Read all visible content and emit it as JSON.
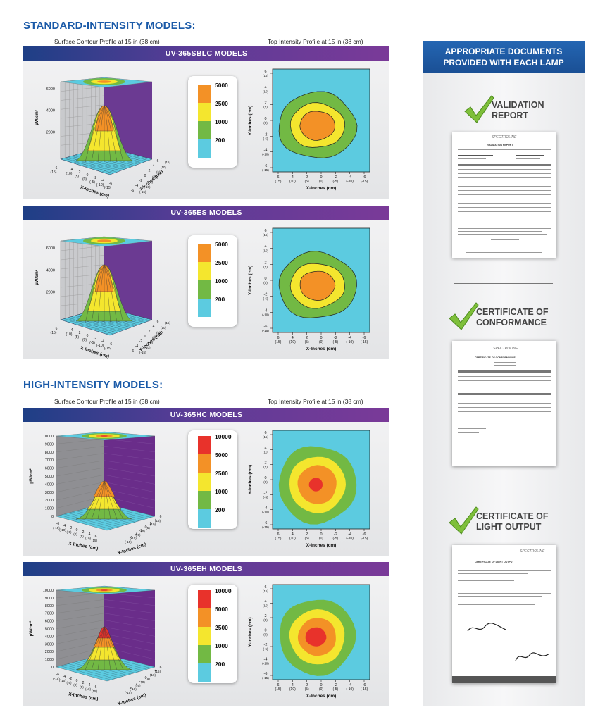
{
  "standard": {
    "title": "STANDARD-INTENSITY MODELS:",
    "surface_label": "Surface Contour Profile at 15 in (38 cm)",
    "top_label": "Top Intensity Profile at 15 in (38 cm)"
  },
  "high": {
    "title": "HIGH-INTENSITY MODELS:",
    "surface_label": "Surface Contour Profile at 15 in (38 cm)",
    "top_label": "Top Intensity Profile at 15 in (38 cm)"
  },
  "panels": [
    {
      "name": "UV-365SBLC MODELS",
      "legend": [
        "5000",
        "2500",
        "1000",
        "200"
      ],
      "z_ticks": [
        "6000",
        "4000",
        "2000"
      ]
    },
    {
      "name": "UV-365ES MODELS",
      "legend": [
        "5000",
        "2500",
        "1000",
        "200"
      ],
      "z_ticks": [
        "6000",
        "4000",
        "2000"
      ]
    },
    {
      "name": "UV-365HC MODELS",
      "legend": [
        "10000",
        "5000",
        "2500",
        "1000",
        "200"
      ],
      "z_ticks": [
        "10000",
        "9000",
        "8000",
        "7000",
        "6000",
        "5000",
        "4000",
        "3000",
        "2000",
        "1000",
        "0"
      ]
    },
    {
      "name": "UV-365EH MODELS",
      "legend": [
        "10000",
        "5000",
        "2500",
        "1000",
        "200"
      ],
      "z_ticks": [
        "10000",
        "9000",
        "8000",
        "7000",
        "6000",
        "5000",
        "4000",
        "3000",
        "2000",
        "1000",
        "0"
      ]
    }
  ],
  "axes": {
    "z_unit": "µW/cm²",
    "x_label": "X-Inches (cm)",
    "y_label": "Y-Inches (cm)",
    "top_x_ticks": [
      "6",
      "4",
      "2",
      "0",
      "-2",
      "-4",
      "-6"
    ],
    "top_x_ticks_cm": [
      "(15)",
      "(10)",
      "(5)",
      "(0)",
      "(-5)",
      "(-10)",
      "(-15)"
    ],
    "top_y_ticks": [
      "6",
      "4",
      "2",
      "0",
      "-2",
      "-4",
      "-6"
    ],
    "top_y_ticks_cm": [
      "(15)",
      "(10)",
      "(5)",
      "(0)",
      "(-5)",
      "(-10)",
      "(-15)"
    ]
  },
  "colors": {
    "red": "#e8322b",
    "orange": "#f39126",
    "yellow": "#f4e62e",
    "green": "#72b944",
    "cyan": "#5ccbe0",
    "purple": "#6b3a92",
    "blue_title": "#1a5aa8"
  },
  "right_column": {
    "header": "APPROPRIATE DOCUMENTS PROVIDED WITH EACH LAMP",
    "header_line1": "APPROPRIATE DOCUMENTS",
    "header_line2": "PROVIDED WITH EACH LAMP",
    "docs": [
      {
        "title_line1": "VALIDATION",
        "title_line2": "REPORT",
        "icon": "check-icon"
      },
      {
        "title_line1": "CERTIFICATE OF",
        "title_line2": "CONFORMANCE",
        "icon": "check-icon"
      },
      {
        "title_line1": "CERTIFICATE OF",
        "title_line2": "LIGHT OUTPUT",
        "icon": "check-icon"
      }
    ],
    "doc_brand": "SPECTROLINE",
    "validation_doc_title": "VALIDATION REPORT",
    "conformance_doc_title": "CERTIFICATE OF CONFORMANCE",
    "light_output_doc_title": "CERTIFICATE OF LIGHT OUTPUT"
  }
}
